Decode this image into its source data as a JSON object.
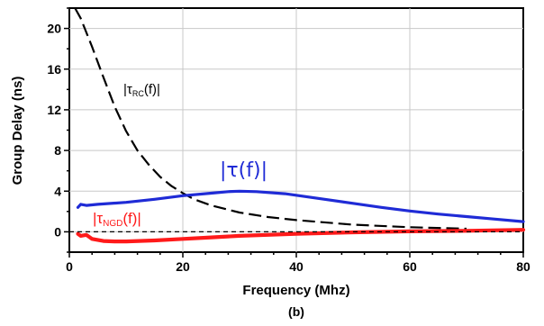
{
  "chart_data": {
    "type": "line",
    "caption": "(b)",
    "xlabel": "Frequency (Mhz)",
    "ylabel": "Group Delay (ns)",
    "xlim": [
      0,
      80
    ],
    "ylim": [
      -2,
      22
    ],
    "x_ticks": [
      "0",
      "20",
      "40",
      "60",
      "80"
    ],
    "y_ticks": [
      "0",
      "4",
      "8",
      "12",
      "16",
      "20"
    ],
    "grid": true,
    "series": [
      {
        "name": "|τRC(f)|",
        "color": "#000000",
        "style": "dashed",
        "x": [
          1,
          2,
          4,
          6,
          8,
          10,
          12,
          14,
          16,
          18,
          20,
          22,
          25,
          30,
          35,
          40,
          50,
          60,
          70
        ],
        "y": [
          22,
          21,
          18.2,
          15.2,
          12.3,
          9.9,
          8.0,
          6.6,
          5.4,
          4.5,
          3.8,
          3.2,
          2.6,
          1.9,
          1.45,
          1.15,
          0.7,
          0.45,
          0.3
        ]
      },
      {
        "name": "|τ(f)|",
        "color": "#1f2bd6",
        "style": "solid",
        "x": [
          1.5,
          2,
          3,
          5,
          10,
          15,
          20,
          25,
          28,
          30,
          33,
          38,
          45,
          50,
          55,
          60,
          65,
          70,
          75,
          80
        ],
        "y": [
          2.4,
          2.7,
          2.6,
          2.7,
          2.9,
          3.2,
          3.55,
          3.8,
          3.95,
          4.0,
          3.95,
          3.75,
          3.2,
          2.8,
          2.4,
          2.05,
          1.75,
          1.5,
          1.25,
          1.0
        ]
      },
      {
        "name": "|τNGD(f)|",
        "color": "#ff1a1a",
        "style": "solid-thick",
        "x": [
          1.5,
          2,
          3,
          4,
          6,
          8,
          10,
          15,
          20,
          25,
          30,
          40,
          50,
          60,
          70,
          80
        ],
        "y": [
          -0.2,
          -0.4,
          -0.3,
          -0.7,
          -0.9,
          -0.95,
          -0.95,
          -0.85,
          -0.7,
          -0.55,
          -0.4,
          -0.2,
          -0.05,
          0.05,
          0.1,
          0.2
        ]
      },
      {
        "name": "zero line",
        "color": "#000000",
        "style": "short-dash",
        "x": [
          0,
          80
        ],
        "y": [
          0,
          0
        ]
      }
    ],
    "annotations": [
      {
        "main": "|τ",
        "sub": "RC",
        "tail": "(f)|"
      },
      {
        "text": "|τ(f)|"
      },
      {
        "main": "|τ",
        "sub": "NGD",
        "tail": "(f)|"
      }
    ]
  }
}
